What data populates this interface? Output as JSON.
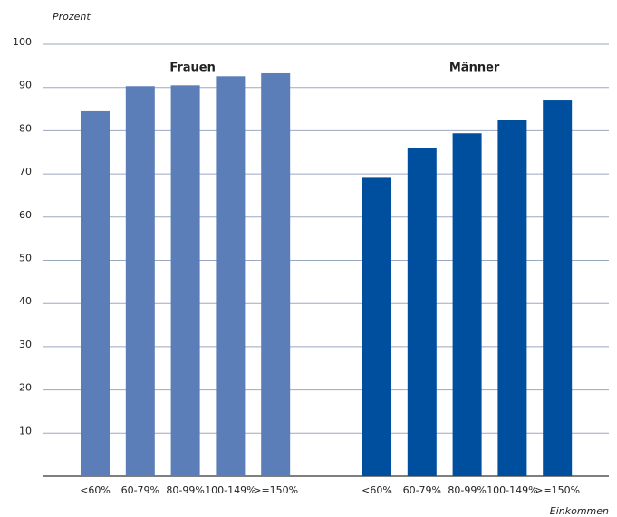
{
  "chart_data": {
    "type": "bar",
    "y_label": "Prozent",
    "x_label": "Einkommen",
    "categories": [
      "<60%",
      "60-79%",
      "80-99%",
      "100-149%",
      ">=150%"
    ],
    "series": [
      {
        "name": "Frauen",
        "color": "#5b7db8",
        "values": [
          84.5,
          90.3,
          90.5,
          92.6,
          93.3
        ]
      },
      {
        "name": "Männer",
        "color": "#004f9f",
        "values": [
          69.1,
          76.1,
          79.4,
          82.6,
          87.2
        ]
      }
    ],
    "ylim": [
      0,
      100
    ],
    "yticks": [
      10,
      20,
      30,
      40,
      50,
      60,
      70,
      80,
      90,
      100
    ],
    "grid": true
  }
}
